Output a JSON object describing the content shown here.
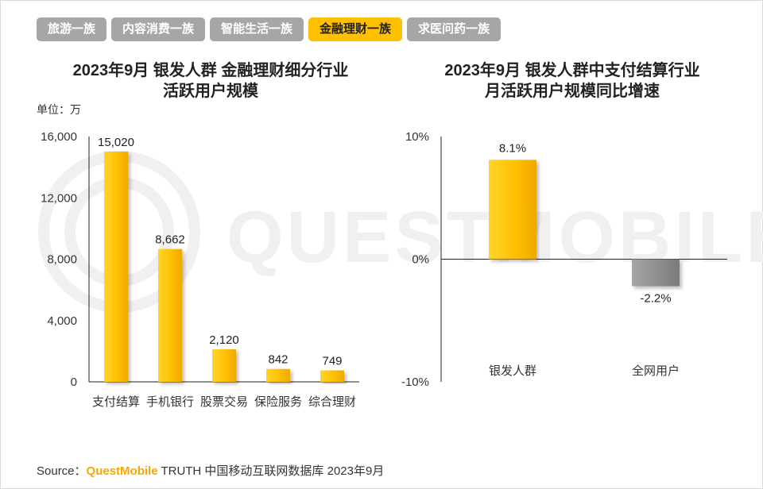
{
  "tabs": [
    {
      "label": "旅游一族",
      "active": false
    },
    {
      "label": "内容消费一族",
      "active": false
    },
    {
      "label": "智能生活一族",
      "active": false
    },
    {
      "label": "金融理财一族",
      "active": true
    },
    {
      "label": "求医问药一族",
      "active": false
    }
  ],
  "left": {
    "title_line1": "2023年9月 银发人群 金融理财细分行业",
    "title_line2": "活跃用户规模",
    "unit": "单位：万"
  },
  "right": {
    "title_line1": "2023年9月 银发人群中支付结算行业",
    "title_line2": "月活跃用户规模同比增速"
  },
  "chart_data": [
    {
      "type": "bar",
      "title": "2023年9月 银发人群 金融理财细分行业活跃用户规模",
      "unit": "单位：万",
      "categories": [
        "支付结算",
        "手机银行",
        "股票交易",
        "保险服务",
        "综合理财"
      ],
      "values": [
        15020,
        8662,
        2120,
        842,
        749
      ],
      "value_labels": [
        "15,020",
        "8,662",
        "2,120",
        "842",
        "749"
      ],
      "ylim": [
        0,
        16000
      ],
      "yticks": [
        0,
        4000,
        8000,
        12000,
        16000
      ],
      "ytick_labels": [
        "0",
        "4,000",
        "8,000",
        "12,000",
        "16,000"
      ],
      "bar_color": "#ffc000"
    },
    {
      "type": "bar",
      "title": "2023年9月 银发人群中支付结算行业月活跃用户规模同比增速",
      "categories": [
        "银发人群",
        "全网用户"
      ],
      "values": [
        8.1,
        -2.2
      ],
      "value_labels": [
        "8.1%",
        "-2.2%"
      ],
      "ylim": [
        -10,
        10
      ],
      "yticks": [
        -10,
        0,
        10
      ],
      "ytick_labels": [
        "-10%",
        "0%",
        "10%"
      ],
      "colors": [
        "#ffc000",
        "#8c8c8c"
      ]
    }
  ],
  "watermark": "QUESTMOBILE",
  "source": {
    "prefix": "Source：",
    "brand": "QuestMobile",
    "rest": " TRUTH 中国移动互联网数据库 2023年9月"
  }
}
